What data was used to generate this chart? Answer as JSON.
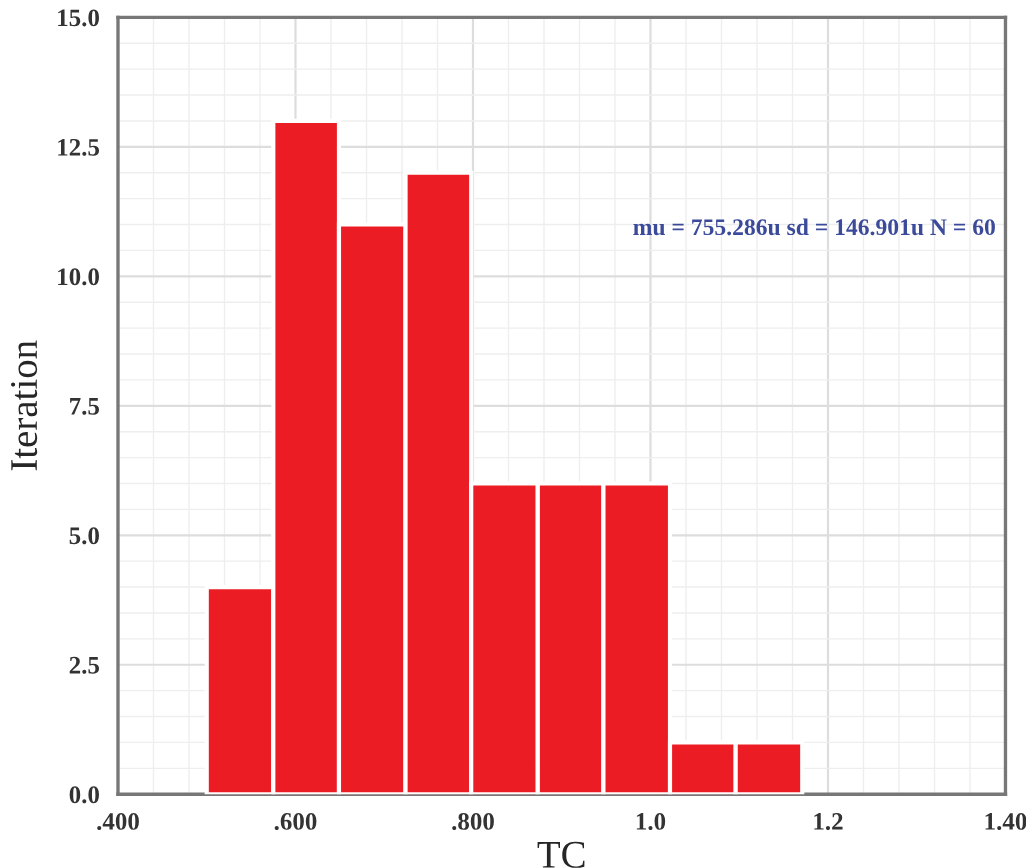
{
  "chart_data": {
    "type": "histogram",
    "xlabel": "TC",
    "ylabel": "Iteration",
    "bins": [
      0.5,
      0.575,
      0.649,
      0.724,
      0.798,
      0.873,
      0.947,
      1.022,
      1.096,
      1.171
    ],
    "values": [
      4,
      13,
      11,
      12,
      6,
      6,
      6,
      1,
      1
    ],
    "color": "#ec1c24",
    "xlim": [
      0.4,
      1.4
    ],
    "xticks": [
      {
        "value": 0.4,
        "label": ".400"
      },
      {
        "value": 0.6,
        "label": ".600"
      },
      {
        "value": 0.8,
        "label": ".800"
      },
      {
        "value": 1.0,
        "label": "1.0"
      },
      {
        "value": 1.2,
        "label": "1.2"
      },
      {
        "value": 1.4,
        "label": "1.40"
      }
    ],
    "ylim": [
      0,
      15
    ],
    "yticks": [
      {
        "value": 0,
        "label": "0.0"
      },
      {
        "value": 2.5,
        "label": "2.5"
      },
      {
        "value": 5,
        "label": "5.0"
      },
      {
        "value": 7.5,
        "label": "7.5"
      },
      {
        "value": 10,
        "label": "10.0"
      },
      {
        "value": 12.5,
        "label": "12.5"
      },
      {
        "value": 15,
        "label": "15.0"
      }
    ],
    "grid": true,
    "annotations": [
      "mu = 755.286u sd = 146.901u N = 60"
    ]
  }
}
